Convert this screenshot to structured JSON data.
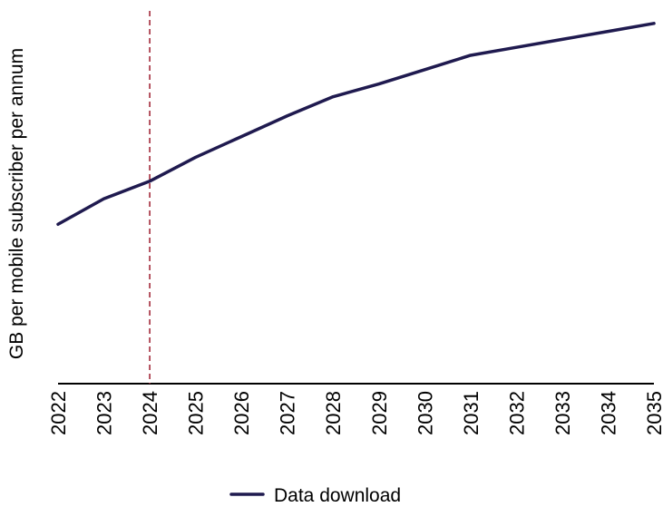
{
  "chart_data": {
    "type": "line",
    "title": "",
    "xlabel": "",
    "ylabel": "GB per mobile subscriber per annum",
    "x": [
      "2022",
      "2023",
      "2024",
      "2025",
      "2026",
      "2027",
      "2028",
      "2029",
      "2030",
      "2031",
      "2032",
      "2033",
      "2034",
      "2035"
    ],
    "series": [
      {
        "name": "Data download",
        "color": "#1f1a4f",
        "values": [
          100,
          116,
          127,
          142,
          155,
          168,
          180,
          188,
          197,
          206,
          211,
          216,
          221,
          226
        ]
      }
    ],
    "ylim": [
      0,
      235
    ],
    "vertical_marker": {
      "x": "2024",
      "color": "#a3293a",
      "style": "dashed"
    },
    "grid": false,
    "y_ticks_shown": false,
    "legend": {
      "placement": "bottom-center"
    }
  }
}
